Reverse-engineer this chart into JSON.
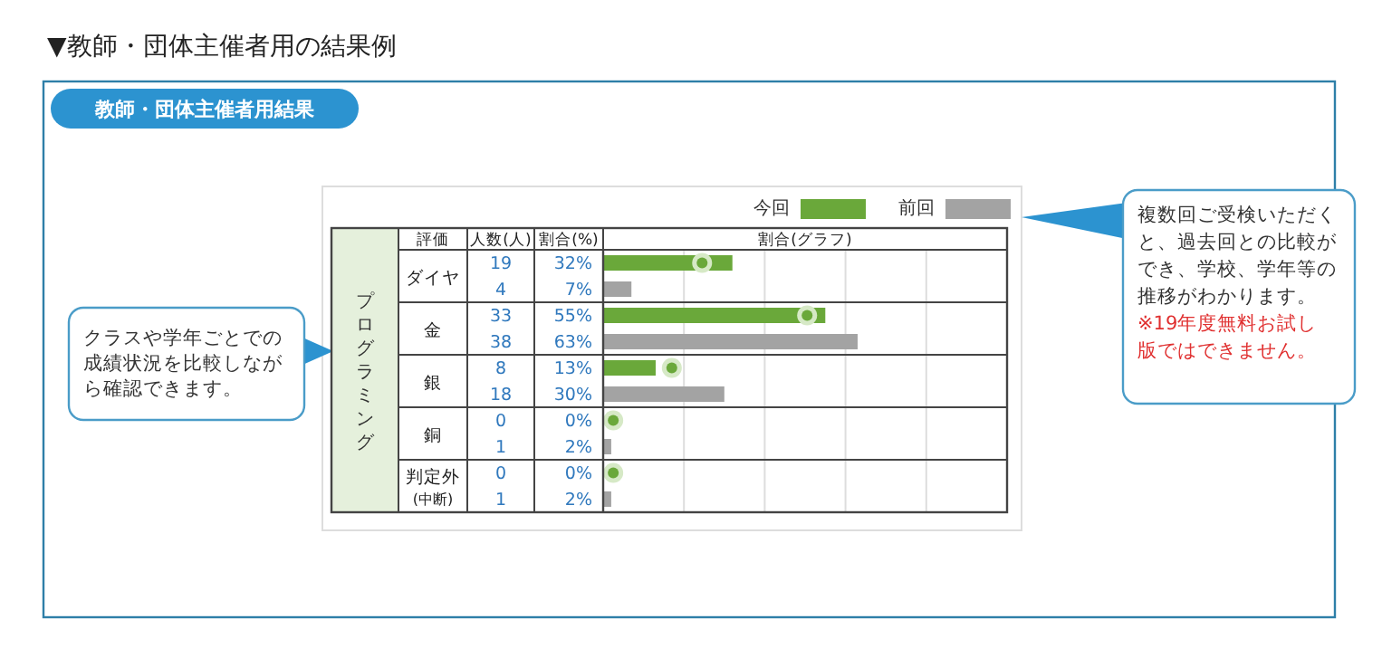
{
  "chart_data": {
    "type": "bar",
    "orientation": "horizontal",
    "title": "▼教師・団体主催者用の結果例",
    "subtitle": "教師・団体主催者用結果",
    "xlabel": "割合(グラフ)",
    "ylabel": "プログラミング",
    "categories": [
      "ダイヤ",
      "金",
      "銀",
      "銅",
      "判定外(中断)"
    ],
    "series": [
      {
        "name": "今回",
        "color": "#6aa83a",
        "values": [
          32,
          55,
          13,
          0,
          0
        ],
        "value_labels": [
          "32%",
          "55%",
          "13%",
          "0%",
          "0%"
        ]
      },
      {
        "name": "前回",
        "color": "#a3a3a3",
        "values": [
          7,
          63,
          30,
          2,
          2
        ],
        "value_labels": [
          "7%",
          "63%",
          "30%",
          "2%",
          "2%"
        ]
      },
      {
        "type": "scatter",
        "color": "#6aa83a",
        "values": [
          24.5,
          50.5,
          17,
          2.5,
          2.5
        ]
      }
    ],
    "xlim": [
      0,
      100
    ],
    "xticks": [
      {
        "value": 20,
        "label": null
      },
      {
        "value": 40,
        "label": null
      },
      {
        "value": 60,
        "label": null
      },
      {
        "value": 80,
        "label": null
      }
    ],
    "grid": "x",
    "legend": "top right",
    "marker": "circle",
    "annotations": [
      "評価",
      "人数(人)",
      "割合(%)",
      "クラスや学年ごとでの成績状況を比較しながら確認できます。",
      "複数回ご受検いただくと、過去回との比較ができ、学校、学年等の推移がわかります。",
      "※19年度無料お試し版ではできません。",
      "19",
      "4",
      "33",
      "38",
      "8",
      "18",
      "0",
      "1",
      "0",
      "1"
    ]
  }
}
